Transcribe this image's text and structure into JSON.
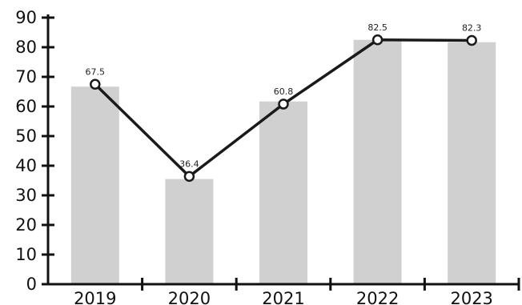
{
  "chart_data": {
    "type": "bar",
    "categories": [
      "2019",
      "2020",
      "2021",
      "2022",
      "2023"
    ],
    "series": [
      {
        "type": "bar",
        "values": [
          66.7,
          35.5,
          61.7,
          82.5,
          81.7
        ],
        "color": "#d0d0d0"
      },
      {
        "type": "line",
        "values": [
          67.5,
          36.4,
          60.8,
          82.5,
          82.3
        ],
        "color": "#1a1a1a",
        "data_labels": [
          "67.5",
          "36.4",
          "60.8",
          "82.5",
          "82.3"
        ]
      }
    ],
    "ylim": [
      0,
      90
    ],
    "yticks": [
      0,
      10,
      20,
      30,
      40,
      50,
      60,
      70,
      80,
      90
    ],
    "xlabel": "",
    "ylabel": "",
    "title": "",
    "grid": false,
    "legend": "none"
  }
}
